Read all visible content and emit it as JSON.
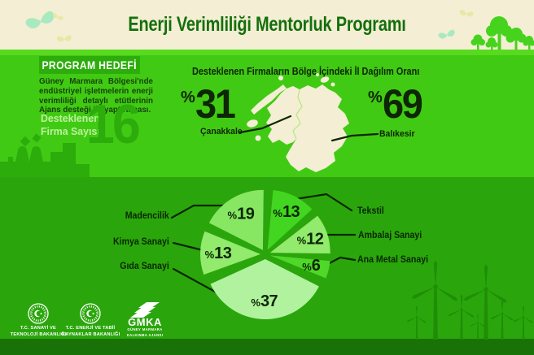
{
  "header": {
    "title": "Enerji Verimliliği Mentorluk Programı"
  },
  "program": {
    "badge": "PROGRAM HEDEFİ",
    "description": "Güney Marmara Bölgesi'nde endüstriyel işletmelerin enerji verimliliği detaylı etütlerinin Ajans desteği ile yaptırılması.",
    "supported_firms_label": "Desteklenen Firma Sayısı",
    "supported_firms_count": "16"
  },
  "chart_data": [
    {
      "type": "pie",
      "variant": "map-callout",
      "title": "Desteklenen Firmaların Bölge İçindeki İl Dağılım Oranı",
      "unit": "%",
      "categories": [
        "Çanakkale",
        "Balıkesir"
      ],
      "values": [
        31,
        69
      ]
    },
    {
      "type": "pie",
      "variant": "exploded",
      "unit": "%",
      "categories": [
        "Tekstil",
        "Ambalaj Sanayi",
        "Ana Metal Sanayi",
        "Gıda Sanayi",
        "Kimya Sanayi",
        "Madencilik"
      ],
      "values": [
        13,
        12,
        6,
        37,
        13,
        19
      ],
      "colors": [
        "#43d621",
        "#92eb6d",
        "#4fd829",
        "#b1f29f",
        "#92eb6d",
        "#87e763"
      ],
      "start_angle_deg": 3,
      "clockwise": true,
      "legend_position": "callout-labels"
    }
  ],
  "footer": {
    "logos": [
      {
        "name": "tc-sanayi-ve-teknoloji-bakanligi",
        "line1": "T.C. SANAYİ VE",
        "line2": "TEKNOLOJİ BAKANLIĞI"
      },
      {
        "name": "tc-enerji-ve-tabii-kaynaklar-bakanligi",
        "line1": "T.C. ENERJİ VE TABİİ",
        "line2": "KAYNAKLAR BAKANLIĞI"
      },
      {
        "name": "gmka",
        "title": "GMKA",
        "line1": "GÜNEY MARMARA",
        "line2": "KALKINMA AJANSI"
      }
    ]
  },
  "colors": {
    "header_bg": "#f3eed4",
    "header_title": "#156f0c",
    "stripe": "#58da1f",
    "mid_bg": "#41ca13",
    "dark_accent": "#2cad0b",
    "light_label": "#bdf19e",
    "body_text": "#16430a",
    "bottom_bg": "#2aa60c",
    "callout_line": "#0d2604",
    "map_fill": "#f3eed4",
    "silhouette_dark": "#1f8e06",
    "footer_bar": "#187207"
  }
}
